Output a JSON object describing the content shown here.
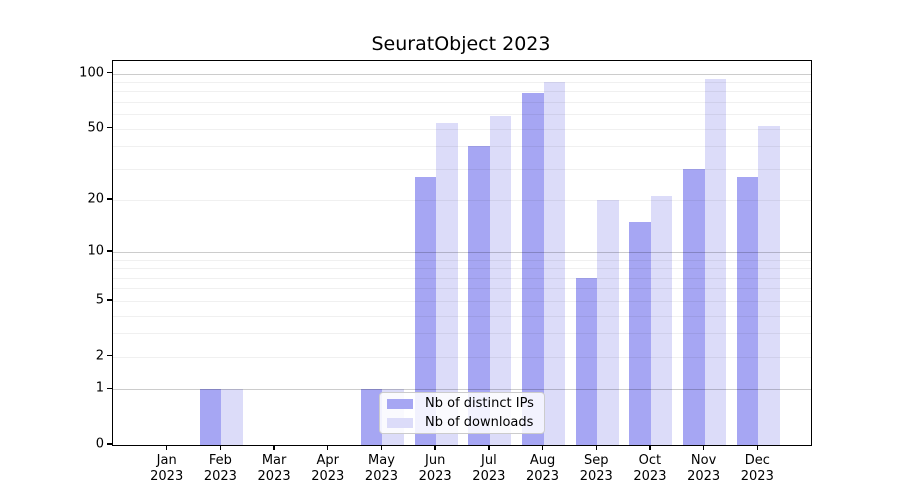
{
  "title": "SeuratObject 2023",
  "legend": {
    "items": [
      {
        "label": "Nb of distinct IPs",
        "color": "#a6a6f3"
      },
      {
        "label": "Nb of downloads",
        "color": "#dcdcf9"
      }
    ]
  },
  "chart_data": {
    "type": "bar",
    "title": "SeuratObject 2023",
    "categories": [
      "Jan",
      "Feb",
      "Mar",
      "Apr",
      "May",
      "Jun",
      "Jul",
      "Aug",
      "Sep",
      "Oct",
      "Nov",
      "Dec"
    ],
    "category_year": "2023",
    "series": [
      {
        "name": "Nb of distinct IPs",
        "color": "#a6a6f3",
        "values": [
          0,
          1,
          0,
          0,
          1,
          27,
          40,
          78,
          7,
          15,
          30,
          27
        ]
      },
      {
        "name": "Nb of downloads",
        "color": "#dcdcf9",
        "values": [
          0,
          1,
          0,
          0,
          1,
          54,
          59,
          90,
          20,
          21,
          94,
          52
        ]
      }
    ],
    "xlabel": "",
    "ylabel": "",
    "yscale": "log1p",
    "ylim": [
      0,
      117
    ],
    "yticks": [
      0,
      1,
      2,
      5,
      10,
      20,
      50,
      100
    ],
    "major_gridline_values": [
      1,
      10,
      100
    ],
    "minor_gridline_values": [
      2,
      3,
      4,
      5,
      6,
      7,
      8,
      9,
      20,
      30,
      40,
      50,
      60,
      70,
      80,
      90
    ],
    "grid": true,
    "legend_position": "lower center"
  }
}
